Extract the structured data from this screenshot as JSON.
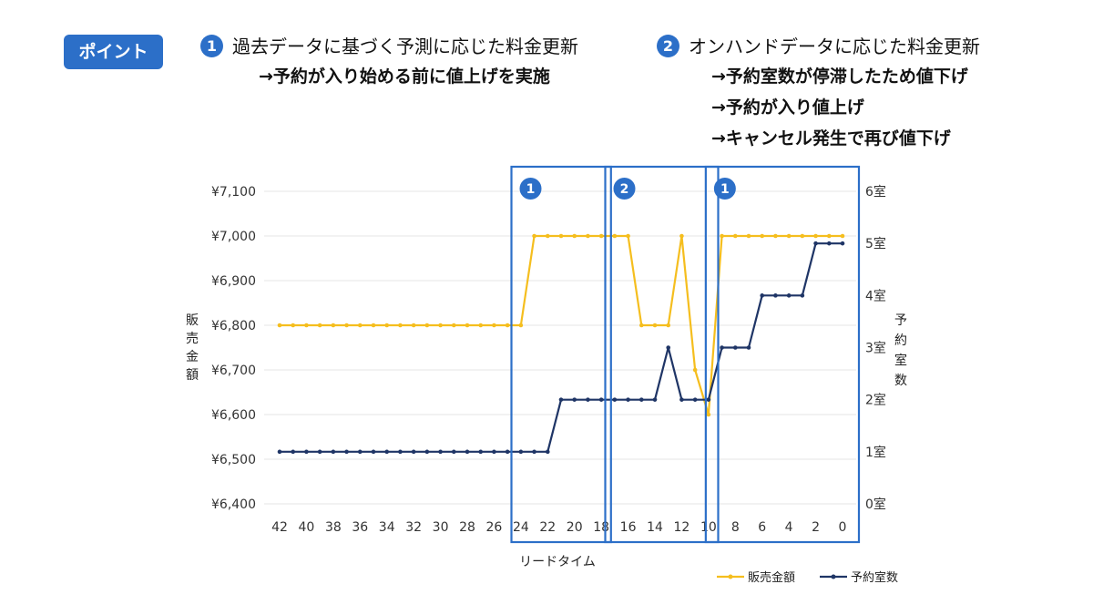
{
  "header": {
    "badge": "ポイント",
    "point1": {
      "num": "1",
      "title": "過去データに基づく予測に応じた料金更新",
      "notes": [
        "→予約が入り始める前に値上げを実施"
      ]
    },
    "point2": {
      "num": "2",
      "title": "オンハンドデータに応じた料金更新",
      "notes": [
        "→予約室数が停滞したため値下げ",
        "→予約が入り値上げ",
        "→キャンセル発生で再び値下げ"
      ]
    }
  },
  "colors": {
    "price": "#f5be1e",
    "rooms": "#1f3566",
    "box": "#2c6fc8",
    "grid": "#e4e4e4"
  },
  "chart_data": {
    "type": "line",
    "xlabel": "リードタイム",
    "ylabel_left": "販売金額",
    "ylabel_right": "予約室数",
    "x_ticks": [
      "42",
      "40",
      "38",
      "36",
      "34",
      "32",
      "30",
      "28",
      "26",
      "24",
      "22",
      "20",
      "18",
      "16",
      "14",
      "12",
      "10",
      "8",
      "6",
      "4",
      "2",
      "0"
    ],
    "left_axis": {
      "ticks": [
        "¥7,100",
        "¥7,000",
        "¥6,900",
        "¥6,800",
        "¥6,700",
        "¥6,600",
        "¥6,500",
        "¥6,400"
      ],
      "ylim": [
        6400,
        7100
      ]
    },
    "right_axis": {
      "ticks": [
        "6室",
        "5室",
        "4室",
        "3室",
        "2室",
        "1室",
        "0室"
      ],
      "ylim": [
        0,
        6
      ]
    },
    "series": [
      {
        "name": "販売金額",
        "axis": "left",
        "x": [
          42,
          41,
          40,
          39,
          38,
          37,
          36,
          35,
          34,
          33,
          32,
          31,
          30,
          29,
          28,
          27,
          26,
          25,
          24,
          23,
          22,
          21,
          20,
          19,
          18,
          17,
          16,
          15,
          14,
          13,
          12,
          11,
          10,
          9,
          8,
          7,
          6,
          5,
          4,
          3,
          2,
          1,
          0
        ],
        "values": [
          6800,
          6800,
          6800,
          6800,
          6800,
          6800,
          6800,
          6800,
          6800,
          6800,
          6800,
          6800,
          6800,
          6800,
          6800,
          6800,
          6800,
          6800,
          6800,
          7000,
          7000,
          7000,
          7000,
          7000,
          7000,
          7000,
          7000,
          6800,
          6800,
          6800,
          7000,
          6700,
          6600,
          7000,
          7000,
          7000,
          7000,
          7000,
          7000,
          7000,
          7000,
          7000,
          7000
        ]
      },
      {
        "name": "予約室数",
        "axis": "right",
        "x": [
          42,
          41,
          40,
          39,
          38,
          37,
          36,
          35,
          34,
          33,
          32,
          31,
          30,
          29,
          28,
          27,
          26,
          25,
          24,
          23,
          22,
          21,
          20,
          19,
          18,
          17,
          16,
          15,
          14,
          13,
          12,
          11,
          10,
          9,
          8,
          7,
          6,
          5,
          4,
          3,
          2,
          1,
          0
        ],
        "values": [
          1,
          1,
          1,
          1,
          1,
          1,
          1,
          1,
          1,
          1,
          1,
          1,
          1,
          1,
          1,
          1,
          1,
          1,
          1,
          1,
          1,
          2,
          2,
          2,
          2,
          2,
          2,
          2,
          2,
          3,
          2,
          2,
          2,
          3,
          3,
          3,
          4,
          4,
          4,
          4,
          5,
          5,
          5
        ]
      }
    ],
    "highlight_boxes": [
      {
        "label": "1",
        "x_from": 24.5,
        "x_to": 18.5
      },
      {
        "label": "2",
        "x_from": 17.5,
        "x_to": 10.5
      },
      {
        "label": "1",
        "x_from": 10,
        "x_to": 0
      }
    ],
    "legend": [
      "販売金額",
      "予約室数"
    ],
    "legend_position": "bottom-right"
  }
}
